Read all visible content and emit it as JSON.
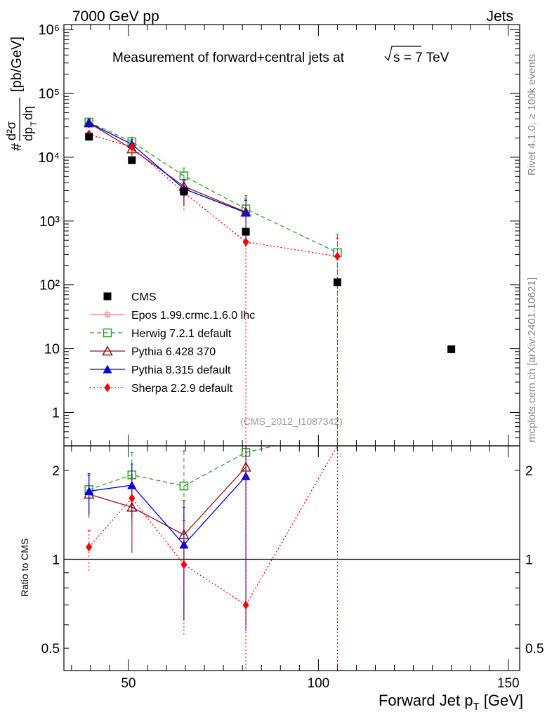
{
  "header": {
    "left": "7000 GeV pp",
    "right": "Jets"
  },
  "side_text": {
    "rivet": "Rivet 4.1.0, ≥ 100k events",
    "mcplots": "mcplots.cern.ch [arXiv:2401.10621]"
  },
  "watermark": "(CMS_2012_I1087342)",
  "chart_data": [
    {
      "type": "line",
      "panel": "main",
      "title": "Measurement of forward+central jets at √s = 7 TeV",
      "ylabel": "d²σ/dp_T dη [pb/GeV]",
      "ylabel_prefix": "#",
      "yscale": "log",
      "xlim": [
        33,
        153
      ],
      "ylim": [
        0.3,
        1200000
      ],
      "yticks": [
        {
          "v": 1,
          "label": "1"
        },
        {
          "v": 10,
          "label": "10"
        },
        {
          "v": 100,
          "label": "10²"
        },
        {
          "v": 1000,
          "label": "10³"
        },
        {
          "v": 10000,
          "label": "10⁴"
        },
        {
          "v": 100000,
          "label": "10⁵"
        },
        {
          "v": 1000000,
          "label": "10⁶"
        }
      ],
      "legend_position": "middle-left",
      "series": [
        {
          "name": "CMS",
          "role": "data",
          "color": "#000000",
          "marker": "square",
          "points": [
            [
              39.6,
              21000
            ],
            [
              50.9,
              9000
            ],
            [
              64.6,
              2900
            ],
            [
              80.9,
              680
            ],
            [
              105,
              110
            ],
            [
              135,
              9.8
            ]
          ]
        },
        {
          "name": "Epos 1.99.crmc.1.6.0 lhc",
          "color": "#f08080",
          "marker": "cross",
          "line": "solid",
          "points": []
        },
        {
          "name": "Herwig 7.2.1 default",
          "color": "#2ca02c",
          "marker": "open-square",
          "line": "dashed",
          "points": [
            [
              39.6,
              35500
            ],
            [
              50.9,
              17500
            ],
            [
              64.6,
              5100
            ],
            [
              80.9,
              1550
            ],
            [
              105,
              320
            ]
          ],
          "err_high": [
            40000,
            20500,
            6800,
            2300,
            620
          ],
          "err_low": [
            31000,
            15000,
            3600,
            900,
            0.3
          ]
        },
        {
          "name": "Pythia 6.428 370",
          "color": "#8b1a1a",
          "marker": "open-triangle",
          "line": "solid",
          "points": [
            [
              39.6,
              34500
            ],
            [
              50.9,
              13500
            ],
            [
              64.6,
              3500
            ],
            [
              80.9,
              1380
            ]
          ],
          "err_high": [
            39000,
            16500,
            4500,
            2200
          ],
          "err_low": [
            29000,
            10500,
            1700,
            400
          ]
        },
        {
          "name": "Pythia 8.315 default",
          "color": "#0000dd",
          "marker": "triangle",
          "line": "solid",
          "points": [
            [
              39.6,
              34500
            ],
            [
              50.9,
              16000
            ],
            [
              64.6,
              3200
            ],
            [
              80.9,
              1350
            ]
          ],
          "err_high": [
            39000,
            19000,
            4300,
            2100
          ],
          "err_low": [
            29000,
            12500,
            1800,
            390
          ]
        },
        {
          "name": "Sherpa 2.2.9 default",
          "color": "#ff0000",
          "marker": "diamond",
          "line": "dotted",
          "points": [
            [
              39.6,
              23000
            ],
            [
              50.9,
              14500
            ],
            [
              64.6,
              2800
            ],
            [
              80.9,
              470
            ],
            [
              105,
              280
            ]
          ],
          "err_high": [
            25500,
            17000,
            3800,
            2500,
            540
          ],
          "err_low": [
            18500,
            11500,
            1500,
            0.3,
            0.3
          ]
        }
      ]
    },
    {
      "type": "line",
      "panel": "ratio",
      "ylabel": "Ratio to CMS",
      "xlabel": "Forward Jet p_T [GeV]",
      "xlabel_main": "Forward Jet p",
      "xlabel_sub": "T",
      "xlabel_unit": " [GeV]",
      "yscale": "log",
      "xlim": [
        33,
        153
      ],
      "ylim": [
        0.42,
        2.42
      ],
      "xticks": [
        50,
        100,
        150
      ],
      "yticks": [
        {
          "v": 0.5,
          "label": "0.5"
        },
        {
          "v": 1,
          "label": "1"
        },
        {
          "v": 2,
          "label": "2"
        }
      ],
      "reference_line": 1,
      "series": [
        {
          "name": "Herwig 7.2.1 default",
          "color": "#2ca02c",
          "marker": "open-square",
          "line": "dashed",
          "points": [
            [
              39.6,
              1.72
            ],
            [
              50.9,
              1.93
            ],
            [
              64.6,
              1.77
            ],
            [
              80.9,
              2.3
            ],
            [
              88.5,
              2.6
            ]
          ],
          "markers": [
            [
              39.6,
              1.72
            ],
            [
              50.9,
              1.93
            ],
            [
              64.6,
              1.77
            ],
            [
              80.9,
              2.3
            ]
          ],
          "err_high": [
            1.92,
            2.3,
            2.33,
            3.0,
            null
          ],
          "err_low": [
            1.52,
            1.58,
            1.2,
            1.3,
            null
          ]
        },
        {
          "name": "Pythia 6.428 370",
          "color": "#8b1a1a",
          "marker": "open-triangle",
          "line": "solid",
          "points": [
            [
              39.6,
              1.66
            ],
            [
              50.9,
              1.5
            ],
            [
              64.6,
              1.21
            ],
            [
              80.9,
              2.05
            ]
          ],
          "err_high": [
            1.92,
            1.8,
            1.58,
            3.0
          ],
          "err_low": [
            1.38,
            1.05,
            0.62,
            0.6
          ]
        },
        {
          "name": "Pythia 8.315 default",
          "color": "#0000dd",
          "marker": "triangle",
          "line": "solid",
          "points": [
            [
              39.6,
              1.7
            ],
            [
              50.9,
              1.78
            ],
            [
              64.6,
              1.12
            ],
            [
              80.9,
              1.91
            ]
          ],
          "err_high": [
            1.95,
            2.1,
            1.5,
            2.8
          ],
          "err_low": [
            1.42,
            1.38,
            0.62,
            0.57
          ]
        },
        {
          "name": "Sherpa 2.2.9 default",
          "color": "#ff0000",
          "marker": "diamond",
          "line": "dotted",
          "points": [
            [
              39.6,
              1.1
            ],
            [
              50.9,
              1.61
            ],
            [
              64.6,
              0.96
            ],
            [
              80.9,
              0.7
            ],
            [
              105,
              2.45
            ]
          ],
          "err_high": [
            1.25,
            1.9,
            1.35,
            3.0,
            3.0
          ],
          "err_low": [
            0.9,
            1.3,
            0.55,
            0.3,
            0.3
          ]
        }
      ]
    }
  ]
}
